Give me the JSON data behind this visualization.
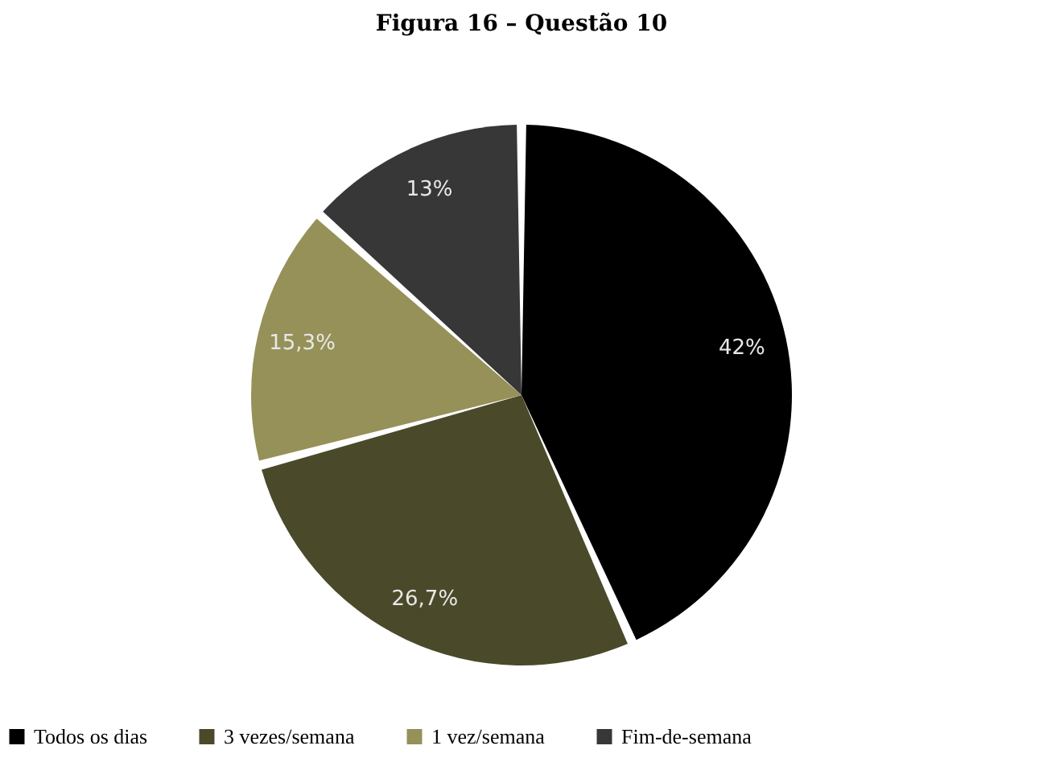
{
  "chart_data": {
    "type": "pie",
    "title": "Figura 16 – Questão 10",
    "categories": [
      "Todos os dias",
      "3 vezes/semana",
      "1 vez/semana",
      "Fim-de-semana"
    ],
    "values": [
      42,
      26.7,
      15.3,
      13
    ],
    "colors": [
      "#000000",
      "#4a4a2a",
      "#959158",
      "#373737"
    ],
    "value_labels": [
      "42%",
      "26,7%",
      "15,3%",
      "13%"
    ],
    "legend": "bottom"
  }
}
